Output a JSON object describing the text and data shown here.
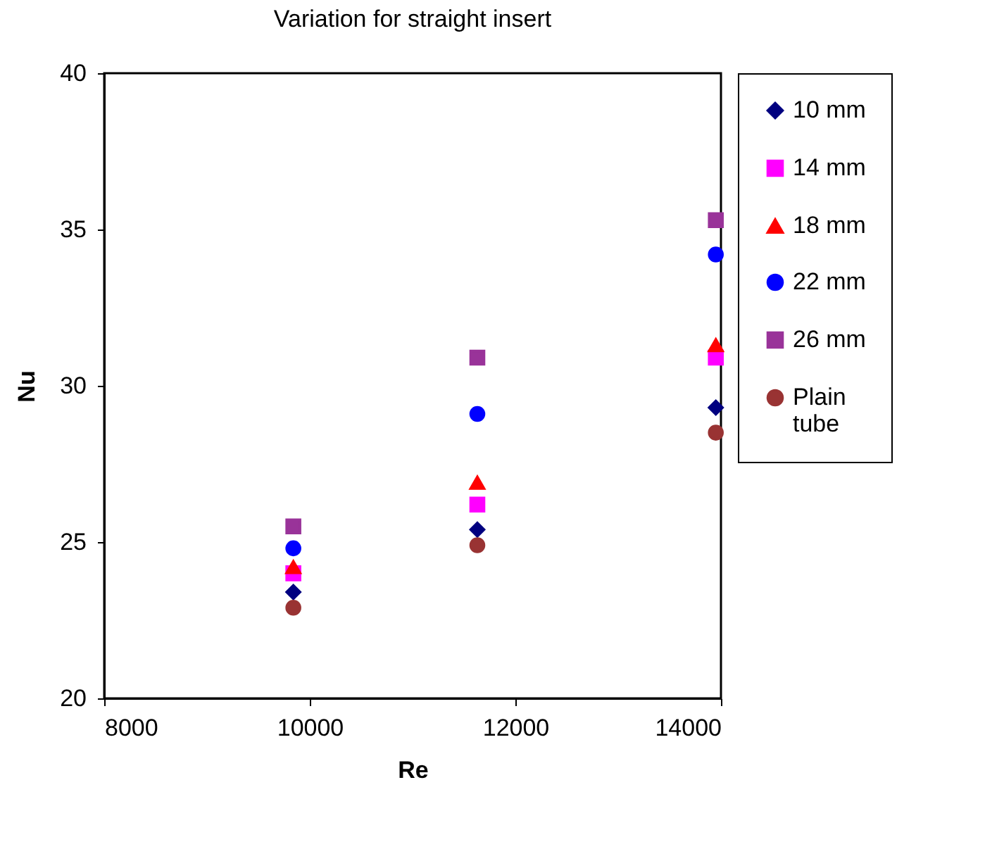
{
  "chart_data": {
    "type": "scatter",
    "title": "Variation for straight insert",
    "xlabel": "Re",
    "ylabel": "Nu",
    "x": [
      9840,
      11630,
      13950
    ],
    "series": [
      {
        "name": "10 mm",
        "color": "#000080",
        "marker": "diamond",
        "values": [
          23.4,
          25.4,
          29.3
        ]
      },
      {
        "name": "14 mm",
        "color": "#ff00ff",
        "marker": "square",
        "values": [
          24.0,
          26.2,
          30.9
        ]
      },
      {
        "name": "18 mm",
        "color": "#ff0000",
        "marker": "triangle",
        "values": [
          24.2,
          26.9,
          31.3
        ]
      },
      {
        "name": "22 mm",
        "color": "#0000ff",
        "marker": "circle",
        "values": [
          24.8,
          29.1,
          34.2
        ]
      },
      {
        "name": "26 mm",
        "color": "#993399",
        "marker": "square",
        "values": [
          25.5,
          30.9,
          35.3
        ]
      },
      {
        "name": "Plain tube",
        "color": "#993333",
        "marker": "circle",
        "values": [
          22.9,
          24.9,
          28.5
        ]
      }
    ],
    "xlim": [
      8000,
      14000
    ],
    "xticks": [
      8000,
      10000,
      12000,
      14000
    ],
    "ylim": [
      20,
      40
    ],
    "yticks": [
      20,
      25,
      30,
      35,
      40
    ],
    "legend": "right"
  }
}
